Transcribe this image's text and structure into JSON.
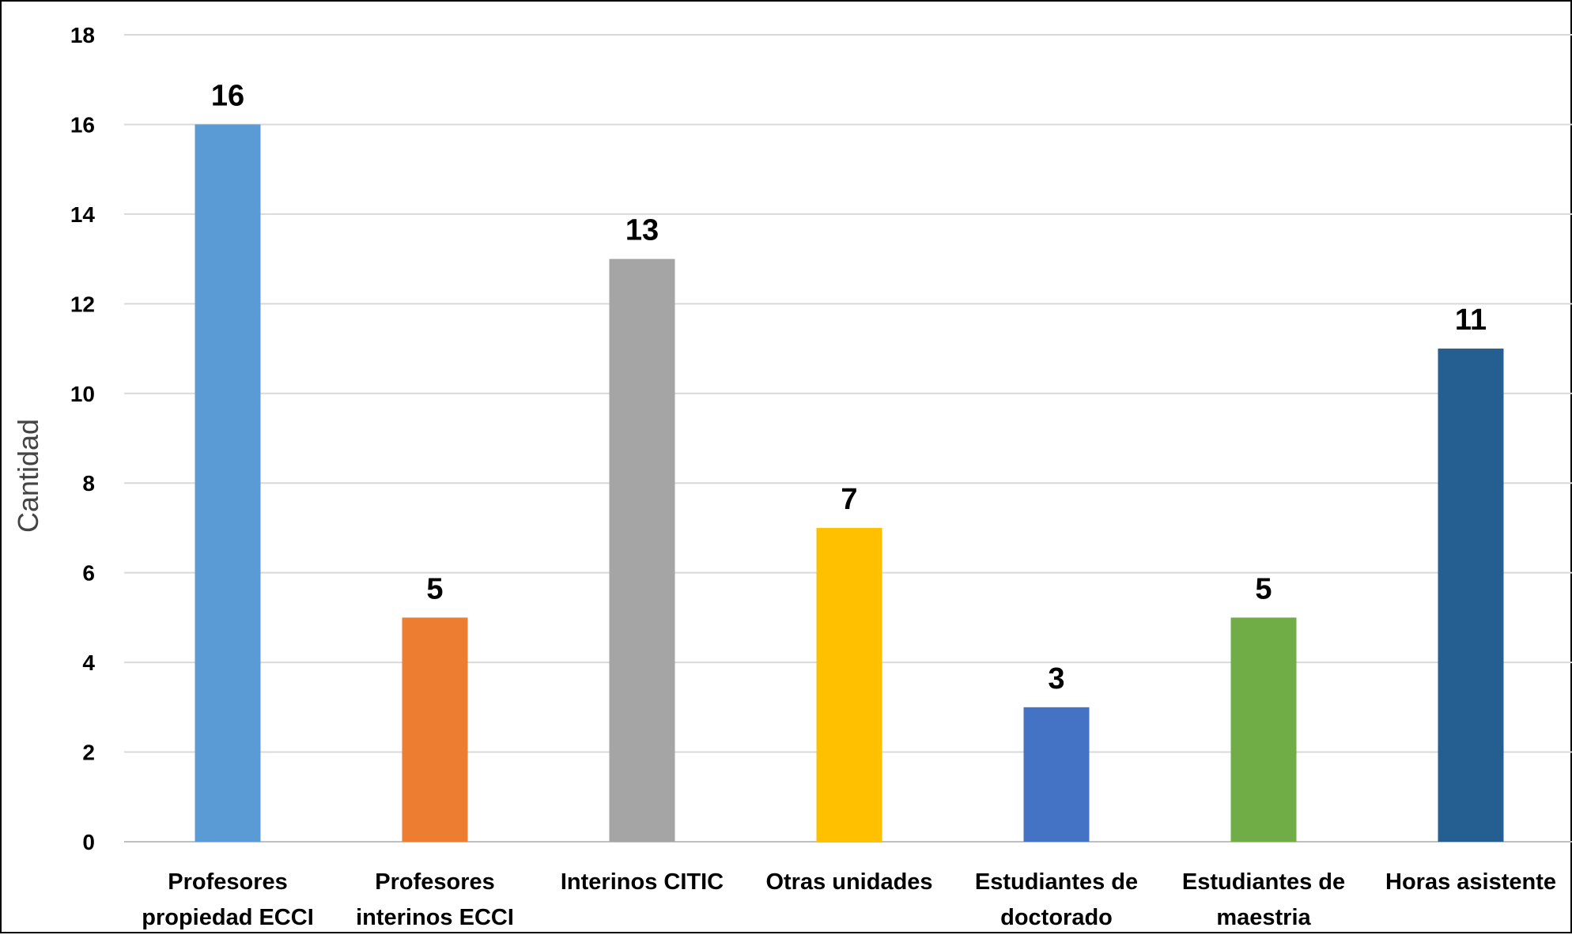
{
  "chart_data": {
    "type": "bar",
    "categories": [
      [
        "Profesores",
        "propiedad ECCI"
      ],
      [
        "Profesores",
        "interinos ECCI"
      ],
      [
        "Interinos CITIC"
      ],
      [
        "Otras unidades"
      ],
      [
        "Estudiantes de",
        "doctorado"
      ],
      [
        "Estudiantes de",
        "maestria"
      ],
      [
        "Horas asistente"
      ]
    ],
    "values": [
      16,
      5,
      13,
      7,
      3,
      5,
      11
    ],
    "bar_colors": [
      "#5B9BD5",
      "#ED7D31",
      "#A5A5A5",
      "#FFC000",
      "#4472C4",
      "#70AD47",
      "#255E91"
    ],
    "title": "",
    "xlabel": "",
    "ylabel": "Cantidad",
    "ylim": [
      0,
      18
    ],
    "yticks": [
      0,
      2,
      4,
      6,
      8,
      10,
      12,
      14,
      16,
      18
    ],
    "grid": true,
    "legend": "none",
    "data_labels": true
  }
}
